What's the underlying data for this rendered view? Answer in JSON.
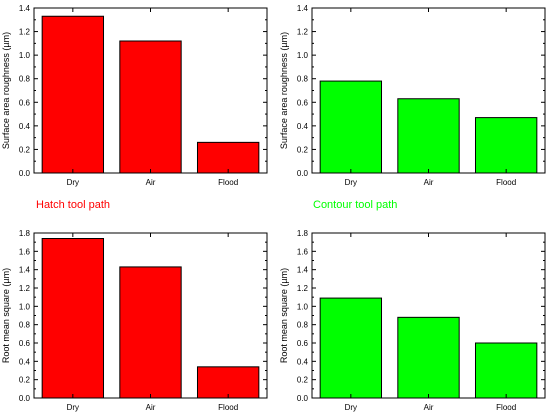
{
  "colors": {
    "hatch": "#ff0000",
    "contour": "#00ff00",
    "edge": "#000000"
  },
  "annotations": {
    "hatch": "Hatch tool path",
    "contour": "Contour tool path"
  },
  "chart_data": [
    {
      "type": "bar",
      "categories": [
        "Dry",
        "Air",
        "Flood"
      ],
      "values": [
        1.33,
        1.12,
        0.26
      ],
      "ylabel": "Surface area roughness (µm)",
      "ylim": [
        0,
        1.4
      ],
      "yticks": [
        "0.0",
        "0.2",
        "0.4",
        "0.6",
        "0.8",
        "1.0",
        "1.2",
        "1.4"
      ],
      "color": "#ff0000",
      "grid": false
    },
    {
      "type": "bar",
      "categories": [
        "Dry",
        "Air",
        "Flood"
      ],
      "values": [
        0.78,
        0.63,
        0.47
      ],
      "ylabel": "Surface area roughness (µm)",
      "ylim": [
        0,
        1.4
      ],
      "yticks": [
        "0.0",
        "0.2",
        "0.4",
        "0.6",
        "0.8",
        "1.0",
        "1.2",
        "1.4"
      ],
      "color": "#00ff00",
      "grid": false
    },
    {
      "type": "bar",
      "categories": [
        "Dry",
        "Air",
        "Flood"
      ],
      "values": [
        1.74,
        1.43,
        0.34
      ],
      "ylabel": "Root mean square (µm)",
      "ylim": [
        0,
        1.8
      ],
      "yticks": [
        "0.0",
        "0.2",
        "0.4",
        "0.6",
        "0.8",
        "1.0",
        "1.2",
        "1.4",
        "1.6",
        "1.8"
      ],
      "color": "#ff0000",
      "grid": false
    },
    {
      "type": "bar",
      "categories": [
        "Dry",
        "Air",
        "Flood"
      ],
      "values": [
        1.09,
        0.88,
        0.6
      ],
      "ylabel": "Root mean square (µm)",
      "ylim": [
        0,
        1.8
      ],
      "yticks": [
        "0.0",
        "0.2",
        "0.4",
        "0.6",
        "0.8",
        "1.0",
        "1.2",
        "1.4",
        "1.6",
        "1.8"
      ],
      "color": "#00ff00",
      "grid": false
    }
  ]
}
